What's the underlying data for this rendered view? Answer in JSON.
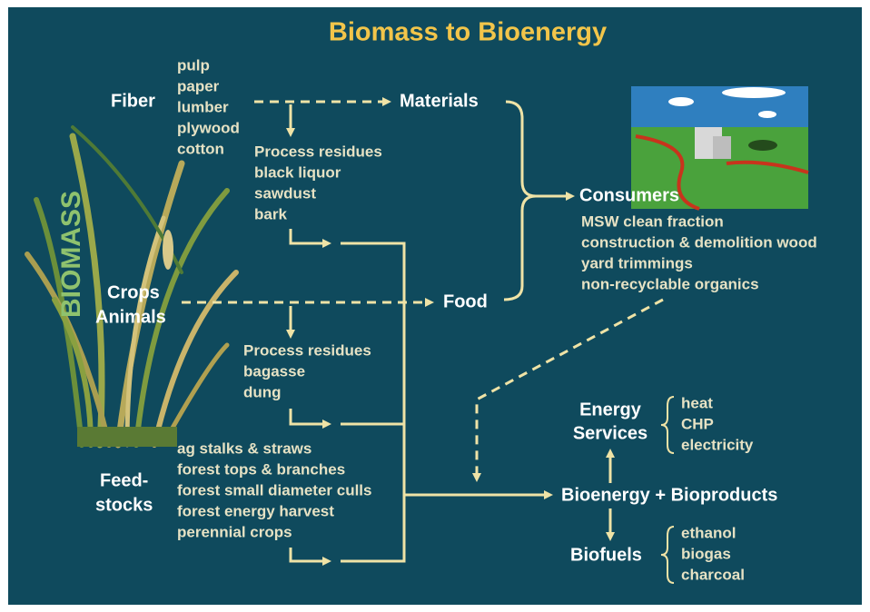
{
  "title": "Biomass to Bioenergy",
  "side_label": "BIOMASS",
  "fiber": {
    "label": "Fiber",
    "items": [
      "pulp",
      "paper",
      "lumber",
      "plywood",
      "cotton"
    ]
  },
  "materials": "Materials",
  "fiber_residues": [
    "Process residues",
    "black liquor",
    "sawdust",
    "bark"
  ],
  "crops": "Crops",
  "animals": "Animals",
  "food": "Food",
  "crop_residues": [
    "Process residues",
    "bagasse",
    "dung"
  ],
  "consumers": {
    "label": "Consumers",
    "items": [
      "MSW clean fraction",
      "construction & demolition wood",
      "yard trimmings",
      "non-recyclable organics"
    ]
  },
  "feedstocks": {
    "label": [
      "Feed-",
      "stocks"
    ],
    "items": [
      "ag stalks & straws",
      "forest tops & branches",
      "forest small diameter culls",
      "forest energy harvest",
      "perennial crops"
    ]
  },
  "energy_services": {
    "label": [
      "Energy",
      "Services"
    ],
    "items": [
      "heat",
      "CHP",
      "electricity"
    ]
  },
  "bioenergy": "Bioenergy + Bioproducts",
  "biofuels": {
    "label": "Biofuels",
    "items": [
      "ethanol",
      "biogas",
      "charcoal"
    ]
  }
}
